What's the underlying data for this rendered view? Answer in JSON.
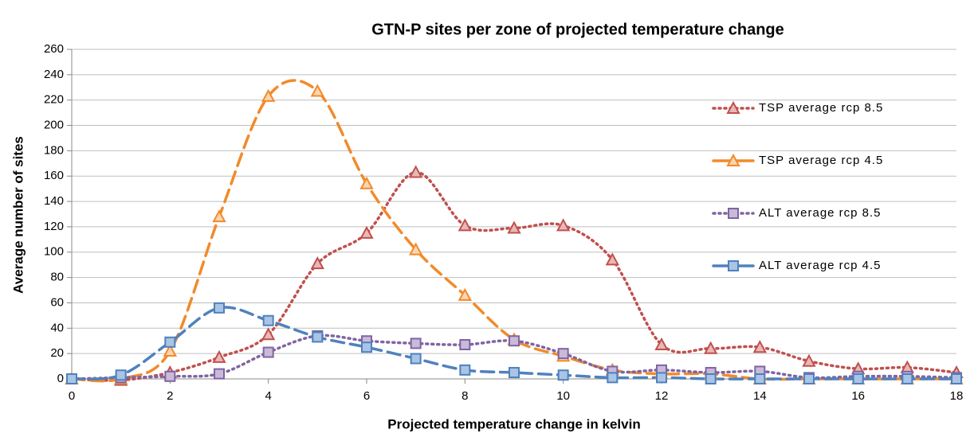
{
  "chart_data": {
    "type": "line",
    "title": "GTN-P sites per zone of projected temperature change",
    "x_label": "Projected temperature change in kelvin",
    "y_label": "Average number of sites",
    "x": [
      0,
      1,
      2,
      3,
      4,
      5,
      6,
      7,
      8,
      9,
      10,
      11,
      12,
      13,
      14,
      15,
      16,
      17,
      18
    ],
    "xlim": [
      0,
      18
    ],
    "xticks": [
      0,
      2,
      4,
      6,
      8,
      10,
      12,
      14,
      16,
      18
    ],
    "ylim": [
      0,
      260
    ],
    "yticks": [
      0,
      20,
      40,
      60,
      80,
      100,
      120,
      140,
      160,
      180,
      200,
      220,
      240,
      260
    ],
    "grid": true,
    "smooth": true,
    "legend": "right",
    "series": [
      {
        "name": "TSP average rcp 8.5",
        "color": "#c0504d",
        "marker_fill": "#e8b8b7",
        "dash": "dotted",
        "marker": "triangle",
        "values": [
          0,
          -1,
          5,
          17,
          35,
          91,
          115,
          163,
          121,
          119,
          121,
          94,
          27,
          24,
          25,
          14,
          8,
          9,
          5
        ]
      },
      {
        "name": "TSP average rcp 4.5",
        "color": "#f28a2a",
        "marker_fill": "#fbd5b0",
        "dash": "dashed",
        "marker": "triangle",
        "values": [
          0,
          0,
          22,
          128,
          223,
          227,
          154,
          102,
          66,
          31,
          18,
          7,
          4,
          4,
          0,
          0,
          0,
          0,
          0
        ]
      },
      {
        "name": "ALT average rcp 8.5",
        "color": "#8064a2",
        "marker_fill": "#c9bad9",
        "dash": "dotted",
        "marker": "square",
        "values": [
          0,
          1,
          2,
          4,
          21,
          34,
          30,
          28,
          27,
          30,
          20,
          6,
          7,
          5,
          6,
          1,
          2,
          2,
          1
        ]
      },
      {
        "name": "ALT average rcp 4.5",
        "color": "#4f81bd",
        "marker_fill": "#a9c4e4",
        "dash": "dashed",
        "marker": "square",
        "values": [
          0,
          3,
          29,
          56,
          46,
          33,
          25,
          16,
          7,
          5,
          3,
          1,
          1,
          0,
          0,
          0,
          0,
          0,
          0
        ]
      }
    ]
  }
}
